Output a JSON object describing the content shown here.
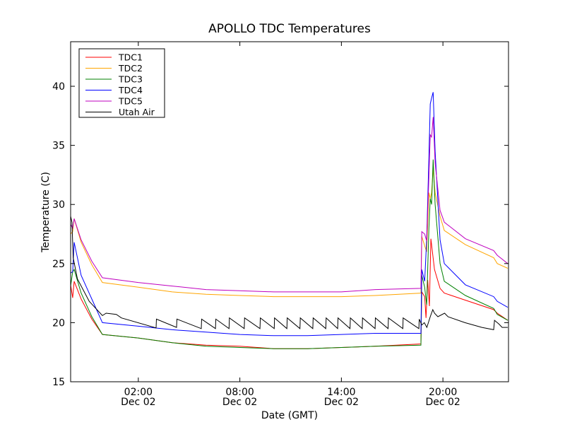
{
  "chart_data": {
    "type": "line",
    "title": "APOLLO TDC Temperatures",
    "xlabel": "Date (GMT)",
    "ylabel": "Temperature (C)",
    "x_units": "hours relative to Dec 02 00:00 GMT",
    "xlim": [
      -2,
      23.875
    ],
    "ylim": [
      15,
      43.77
    ],
    "grid": false,
    "legend_position": "top-left",
    "x_ticks": [
      {
        "value": 2,
        "time": "02:00",
        "date": "Dec 02"
      },
      {
        "value": 8,
        "time": "08:00",
        "date": "Dec 02"
      },
      {
        "value": 14,
        "time": "14:00",
        "date": "Dec 02"
      },
      {
        "value": 20,
        "time": "20:00",
        "date": "Dec 02"
      }
    ],
    "y_ticks": [
      {
        "value": 15,
        "label": "15"
      },
      {
        "value": 20,
        "label": "20"
      },
      {
        "value": 25,
        "label": "25"
      },
      {
        "value": 30,
        "label": "30"
      },
      {
        "value": 35,
        "label": "35"
      },
      {
        "value": 40,
        "label": "40"
      }
    ],
    "series": [
      {
        "name": "TDC1",
        "color": "#ff0000",
        "points": [
          [
            -2,
            23.2
          ],
          [
            -1.88,
            22.1
          ],
          [
            -1.79,
            23.5
          ],
          [
            -1.38,
            22.0
          ],
          [
            -0.75,
            20.3
          ],
          [
            -0.12,
            19.0
          ],
          [
            2,
            18.7
          ],
          [
            4,
            18.3
          ],
          [
            6,
            18.1
          ],
          [
            8,
            18.0
          ],
          [
            10,
            17.8
          ],
          [
            12,
            17.8
          ],
          [
            14,
            17.9
          ],
          [
            16,
            18.0
          ],
          [
            18.7,
            18.2
          ],
          [
            18.75,
            22.6
          ],
          [
            18.92,
            22.2
          ],
          [
            19.0,
            20.4
          ],
          [
            19.1,
            23.6
          ],
          [
            19.2,
            21.4
          ],
          [
            19.29,
            27.1
          ],
          [
            19.5,
            24.5
          ],
          [
            19.83,
            22.9
          ],
          [
            20.08,
            22.5
          ],
          [
            21.33,
            21.9
          ],
          [
            23.0,
            21.1
          ],
          [
            23.21,
            20.8
          ],
          [
            23.83,
            20.2
          ]
        ]
      },
      {
        "name": "TDC2",
        "color": "#ffa500",
        "points": [
          [
            -2,
            27.5
          ],
          [
            -1.88,
            27.7
          ],
          [
            -1.79,
            28.8
          ],
          [
            -1.38,
            26.8
          ],
          [
            -0.75,
            24.9
          ],
          [
            -0.12,
            23.4
          ],
          [
            2,
            23.0
          ],
          [
            4,
            22.6
          ],
          [
            6,
            22.4
          ],
          [
            8,
            22.3
          ],
          [
            10,
            22.2
          ],
          [
            12,
            22.2
          ],
          [
            14,
            22.2
          ],
          [
            16,
            22.3
          ],
          [
            18.7,
            22.5
          ],
          [
            18.75,
            27.3
          ],
          [
            18.92,
            26.5
          ],
          [
            19.04,
            26.0
          ],
          [
            19.17,
            31.0
          ],
          [
            19.25,
            30.5
          ],
          [
            19.33,
            31.0
          ],
          [
            19.42,
            33.0
          ],
          [
            19.54,
            31.0
          ],
          [
            19.83,
            29.0
          ],
          [
            20.08,
            27.8
          ],
          [
            21.33,
            26.6
          ],
          [
            23.0,
            25.5
          ],
          [
            23.21,
            25.0
          ],
          [
            23.83,
            24.6
          ]
        ]
      },
      {
        "name": "TDC3",
        "color": "#008000",
        "points": [
          [
            -2,
            23.1
          ],
          [
            -1.88,
            24.3
          ],
          [
            -1.79,
            24.5
          ],
          [
            -1.38,
            22.5
          ],
          [
            -0.75,
            20.5
          ],
          [
            -0.12,
            19.0
          ],
          [
            2,
            18.7
          ],
          [
            4,
            18.3
          ],
          [
            6,
            18.0
          ],
          [
            8,
            17.9
          ],
          [
            10,
            17.8
          ],
          [
            12,
            17.8
          ],
          [
            14,
            17.9
          ],
          [
            16,
            18.0
          ],
          [
            18.7,
            18.1
          ],
          [
            18.75,
            24.0
          ],
          [
            18.92,
            23.0
          ],
          [
            19.04,
            21.5
          ],
          [
            19.17,
            28.0
          ],
          [
            19.25,
            30.5
          ],
          [
            19.33,
            30.0
          ],
          [
            19.42,
            33.8
          ],
          [
            19.54,
            30.0
          ],
          [
            19.83,
            25.0
          ],
          [
            20.08,
            23.5
          ],
          [
            21.33,
            22.3
          ],
          [
            23.0,
            21.2
          ],
          [
            23.21,
            20.7
          ],
          [
            23.83,
            20.2
          ]
        ]
      },
      {
        "name": "TDC4",
        "color": "#0000ff",
        "points": [
          [
            -2,
            24.2
          ],
          [
            -1.88,
            24.3
          ],
          [
            -1.79,
            26.8
          ],
          [
            -1.38,
            24.0
          ],
          [
            -0.75,
            22.0
          ],
          [
            -0.12,
            20.0
          ],
          [
            2,
            19.7
          ],
          [
            4,
            19.4
          ],
          [
            6,
            19.2
          ],
          [
            8,
            19.0
          ],
          [
            10,
            18.9
          ],
          [
            12,
            18.9
          ],
          [
            14,
            19.0
          ],
          [
            16,
            19.1
          ],
          [
            18.7,
            19.1
          ],
          [
            18.75,
            24.5
          ],
          [
            18.92,
            23.5
          ],
          [
            19.04,
            27.0
          ],
          [
            19.17,
            34.0
          ],
          [
            19.25,
            38.5
          ],
          [
            19.33,
            39.0
          ],
          [
            19.42,
            39.5
          ],
          [
            19.54,
            34.5
          ],
          [
            19.83,
            27.0
          ],
          [
            20.08,
            25.0
          ],
          [
            21.33,
            23.2
          ],
          [
            23.0,
            22.2
          ],
          [
            23.21,
            21.8
          ],
          [
            23.83,
            21.3
          ]
        ]
      },
      {
        "name": "TDC5",
        "color": "#bf00bf",
        "points": [
          [
            -2,
            28.3
          ],
          [
            -1.88,
            28.0
          ],
          [
            -1.79,
            28.8
          ],
          [
            -1.38,
            27.0
          ],
          [
            -0.75,
            25.2
          ],
          [
            -0.12,
            23.8
          ],
          [
            2,
            23.4
          ],
          [
            4,
            23.1
          ],
          [
            6,
            22.8
          ],
          [
            8,
            22.7
          ],
          [
            10,
            22.6
          ],
          [
            12,
            22.6
          ],
          [
            14,
            22.6
          ],
          [
            16,
            22.8
          ],
          [
            18.7,
            22.9
          ],
          [
            18.75,
            27.7
          ],
          [
            18.92,
            27.5
          ],
          [
            19.04,
            26.9
          ],
          [
            19.17,
            32.3
          ],
          [
            19.25,
            35.9
          ],
          [
            19.33,
            35.7
          ],
          [
            19.42,
            37.4
          ],
          [
            19.54,
            33.5
          ],
          [
            19.83,
            29.5
          ],
          [
            20.08,
            28.5
          ],
          [
            21.33,
            27.1
          ],
          [
            23.0,
            26.1
          ],
          [
            23.21,
            25.7
          ],
          [
            23.83,
            25.0
          ]
        ]
      },
      {
        "name": "Utah Air",
        "color": "#000000",
        "points": [
          [
            -2,
            29.0
          ],
          [
            -1.92,
            28.5
          ],
          [
            -1.85,
            25.5
          ],
          [
            -1.6,
            23.7
          ],
          [
            -0.9,
            21.8
          ],
          [
            -0.12,
            20.6
          ],
          [
            0.1,
            20.8
          ],
          [
            0.7,
            20.7
          ],
          [
            1.0,
            20.4
          ],
          [
            3.05,
            19.55
          ],
          [
            3.07,
            20.3
          ],
          [
            4.26,
            19.6
          ],
          [
            4.28,
            20.3
          ],
          [
            5.72,
            19.5
          ],
          [
            5.74,
            20.3
          ],
          [
            6.56,
            19.5
          ],
          [
            6.58,
            20.3
          ],
          [
            7.36,
            19.5
          ],
          [
            7.38,
            20.4
          ],
          [
            8.26,
            19.5
          ],
          [
            8.28,
            20.4
          ],
          [
            9.19,
            19.5
          ],
          [
            9.21,
            20.4
          ],
          [
            10.03,
            19.5
          ],
          [
            10.05,
            20.4
          ],
          [
            10.78,
            19.5
          ],
          [
            10.8,
            20.4
          ],
          [
            11.55,
            19.5
          ],
          [
            11.57,
            20.4
          ],
          [
            12.31,
            19.5
          ],
          [
            12.33,
            20.4
          ],
          [
            13.08,
            19.5
          ],
          [
            13.1,
            20.4
          ],
          [
            13.78,
            19.5
          ],
          [
            13.8,
            20.4
          ],
          [
            14.51,
            19.5
          ],
          [
            14.53,
            20.4
          ],
          [
            15.23,
            19.5
          ],
          [
            15.25,
            20.4
          ],
          [
            15.99,
            19.5
          ],
          [
            16.01,
            20.4
          ],
          [
            16.76,
            19.5
          ],
          [
            16.78,
            20.4
          ],
          [
            17.63,
            19.5
          ],
          [
            17.65,
            20.4
          ],
          [
            18.58,
            19.5
          ],
          [
            18.6,
            20.3
          ],
          [
            18.75,
            19.8
          ],
          [
            18.9,
            20.0
          ],
          [
            19.05,
            19.6
          ],
          [
            19.25,
            20.5
          ],
          [
            19.4,
            21.1
          ],
          [
            19.5,
            20.8
          ],
          [
            19.7,
            20.5
          ],
          [
            20.1,
            20.8
          ],
          [
            20.3,
            20.5
          ],
          [
            21.3,
            20.0
          ],
          [
            22.3,
            19.6
          ],
          [
            23.0,
            19.4
          ],
          [
            23.05,
            20.2
          ],
          [
            23.3,
            19.9
          ],
          [
            23.5,
            19.6
          ],
          [
            23.83,
            19.6
          ]
        ]
      }
    ]
  }
}
